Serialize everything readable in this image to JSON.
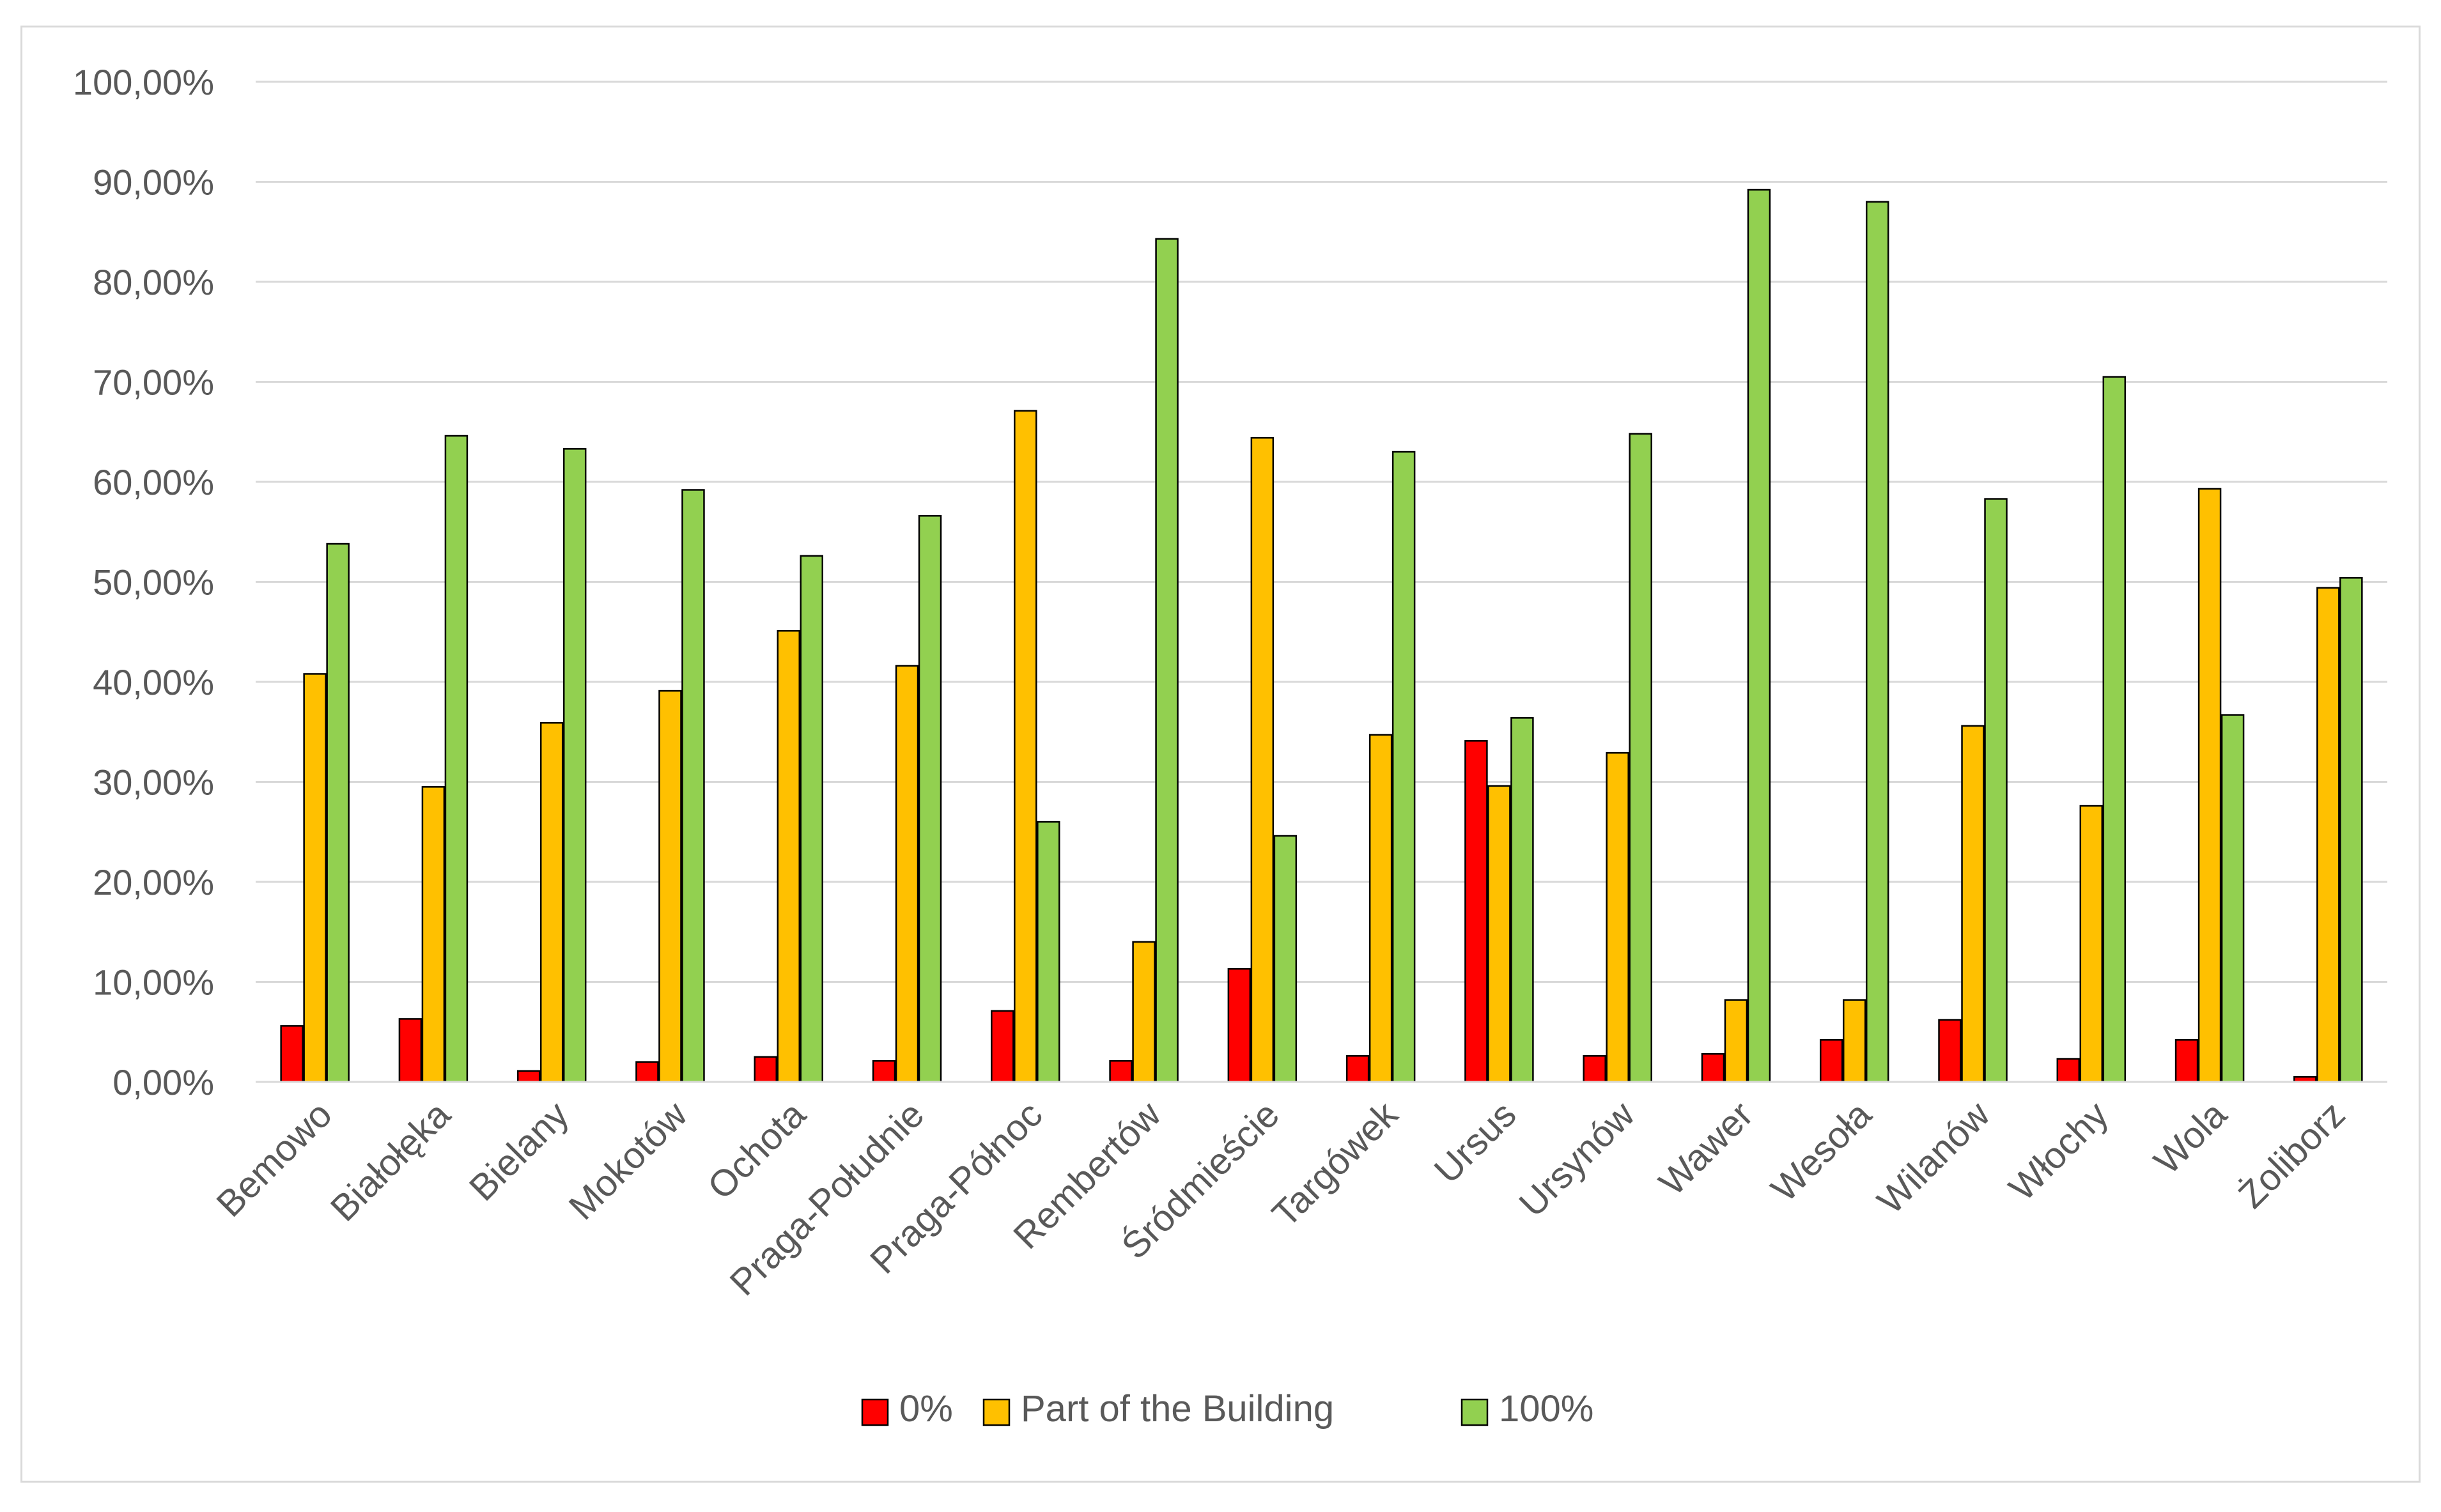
{
  "chart_data": {
    "type": "bar",
    "title": "",
    "xlabel": "",
    "ylabel": "",
    "ylim": [
      0,
      100
    ],
    "grid": true,
    "legend_position": "bottom",
    "y_ticks": [
      0,
      10,
      20,
      30,
      40,
      50,
      60,
      70,
      80,
      90,
      100
    ],
    "y_tick_labels": [
      "0,00%",
      "10,00%",
      "20,00%",
      "30,00%",
      "40,00%",
      "50,00%",
      "60,00%",
      "70,00%",
      "80,00%",
      "90,00%",
      "100,00%"
    ],
    "categories": [
      "Bemowo",
      "Białołęka",
      "Bielany",
      "Mokotów",
      "Ochota",
      "Praga-Południe",
      "Praga-Północ",
      "Rembertów",
      "Śródmieście",
      "Targówek",
      "Ursus",
      "Ursynów",
      "Wawer",
      "Wesoła",
      "Wilanów",
      "Włochy",
      "Wola",
      "Żoliborz"
    ],
    "series": [
      {
        "name": "0%",
        "color": "#ff0000",
        "values": [
          5.6,
          6.3,
          1.1,
          2.0,
          2.5,
          2.1,
          7.1,
          2.1,
          11.3,
          2.6,
          34.1,
          2.6,
          2.8,
          4.2,
          6.2,
          2.3,
          4.2,
          0.5
        ]
      },
      {
        "name": "Part of the Building",
        "color": "#ffc000",
        "values": [
          40.8,
          29.5,
          35.9,
          39.1,
          45.1,
          41.6,
          67.1,
          14.0,
          64.4,
          34.7,
          29.6,
          32.9,
          8.2,
          8.2,
          35.6,
          27.6,
          59.3,
          49.4
        ]
      },
      {
        "name": "100%",
        "color": "#92d050",
        "values": [
          53.8,
          64.6,
          63.3,
          59.2,
          52.6,
          56.6,
          26.0,
          84.3,
          24.6,
          63.0,
          36.4,
          64.8,
          89.2,
          88.0,
          58.3,
          70.5,
          36.7,
          50.4
        ]
      }
    ]
  }
}
